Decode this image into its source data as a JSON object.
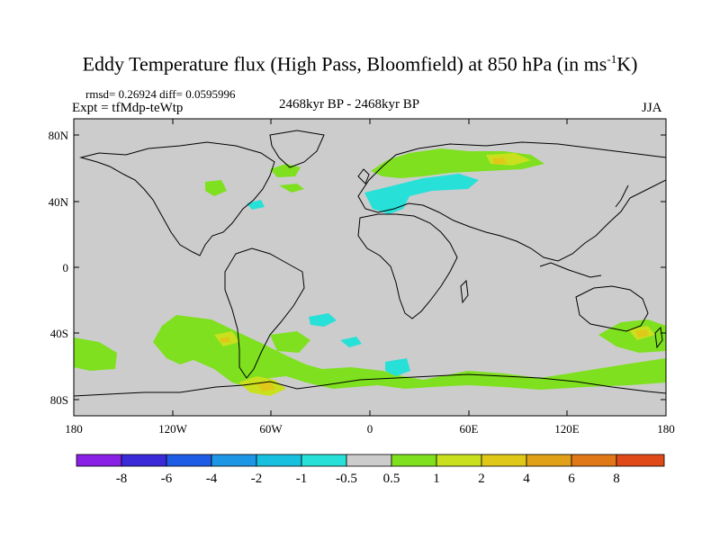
{
  "title": {
    "main": "Eddy Temperature flux (High Pass, Bloomfield) at 850 hPa (in ms",
    "sup": "-1",
    "unit_end": "K)"
  },
  "stats": "rmsd= 0.26924  diff= 0.0595996",
  "experiment": "Expt = tfMdp-teWtp",
  "period": "2468kyr BP - 2468kyr BP",
  "season": "JJA",
  "lat_labels": [
    "80N",
    "40N",
    "0",
    "40S",
    "80S"
  ],
  "lon_labels": [
    "180",
    "120W",
    "60W",
    "0",
    "60E",
    "120E",
    "180"
  ],
  "colorbar": {
    "labels": [
      "-8",
      "-6",
      "-4",
      "-2",
      "-1",
      "-0.5",
      "0.5",
      "1",
      "2",
      "4",
      "6",
      "8"
    ],
    "colors": [
      "#8a1fe6",
      "#3a2ad8",
      "#1e5ce6",
      "#1e96e6",
      "#18c0e0",
      "#27e0d8",
      "#cccccc",
      "#7ee01e",
      "#c8e01e",
      "#e0c818",
      "#e0a018",
      "#e07818",
      "#e04a18"
    ]
  },
  "field_colors": {
    "background": "#cccccc",
    "positive_low": "#7ee01e",
    "positive_mid": "#c8e01e",
    "positive_high": "#e0c818",
    "negative_low": "#27e0d8"
  }
}
